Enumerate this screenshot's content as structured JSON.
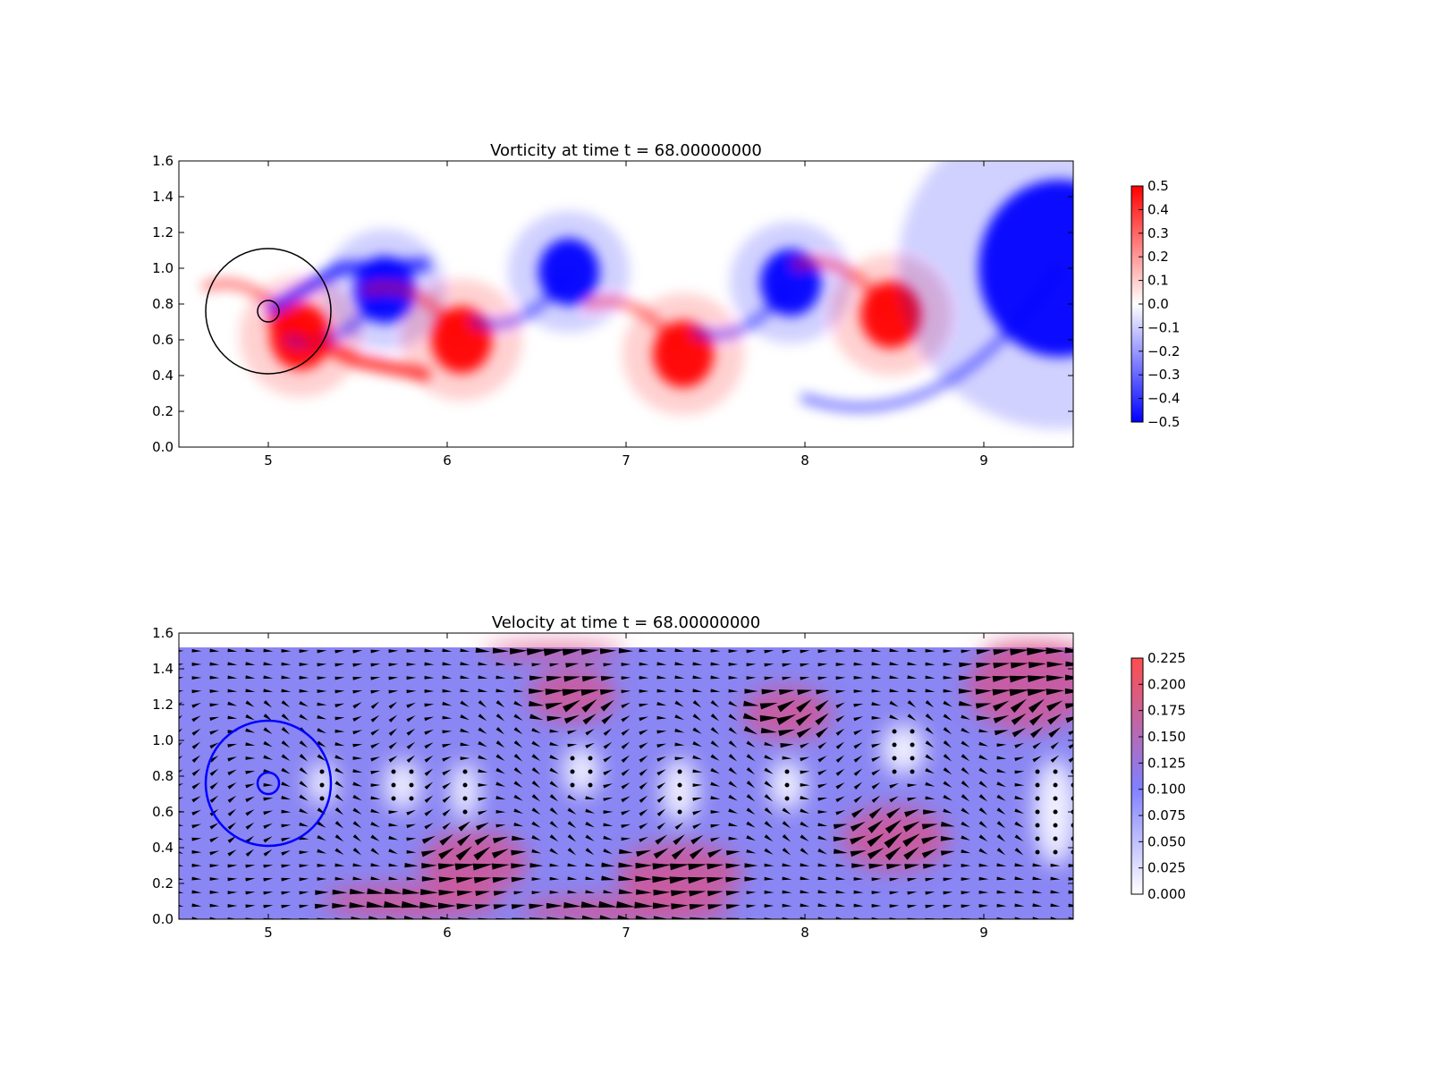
{
  "figure": {
    "background": "#ffffff"
  },
  "chart_data": [
    {
      "type": "heatmap",
      "title": "Vorticity at time t =    68.00000000",
      "xlabel": "",
      "ylabel": "",
      "xlim": [
        4.5,
        9.5
      ],
      "ylim": [
        0.0,
        1.6
      ],
      "x_ticks": [
        "5",
        "6",
        "7",
        "8",
        "9"
      ],
      "y_ticks": [
        "0.0",
        "0.2",
        "0.4",
        "0.6",
        "0.8",
        "1.0",
        "1.2",
        "1.4",
        "1.6"
      ],
      "colormap": "bwr",
      "colorbar": {
        "range": [
          -0.5,
          0.5
        ],
        "ticks": [
          "0.5",
          "0.4",
          "0.3",
          "0.2",
          "0.1",
          "0.0",
          "−0.1",
          "−0.2",
          "−0.3",
          "−0.4",
          "−0.5"
        ],
        "colors": [
          "#0000ff",
          "#ffffff",
          "#ff0000"
        ]
      },
      "cylinder": {
        "center": [
          5.0,
          0.76
        ],
        "radius": 0.05
      },
      "outer_circle": {
        "center": [
          5.0,
          0.76
        ],
        "radius": 0.35
      },
      "vortices": [
        {
          "x": 5.18,
          "y": 0.62,
          "strength": 0.5
        },
        {
          "x": 5.65,
          "y": 0.88,
          "strength": -0.5
        },
        {
          "x": 6.08,
          "y": 0.6,
          "strength": 0.5
        },
        {
          "x": 6.68,
          "y": 0.98,
          "strength": -0.5
        },
        {
          "x": 7.32,
          "y": 0.52,
          "strength": 0.5
        },
        {
          "x": 7.92,
          "y": 0.92,
          "strength": -0.5
        },
        {
          "x": 8.48,
          "y": 0.74,
          "strength": 0.5
        },
        {
          "x": 9.42,
          "y": 1.0,
          "strength": -0.5
        }
      ]
    },
    {
      "type": "heatmap",
      "title": "Velocity at time t =    68.00000000",
      "xlabel": "",
      "ylabel": "",
      "xlim": [
        4.5,
        9.5
      ],
      "ylim": [
        0.0,
        1.6
      ],
      "x_ticks": [
        "5",
        "6",
        "7",
        "8",
        "9"
      ],
      "y_ticks": [
        "0.0",
        "0.2",
        "0.4",
        "0.6",
        "0.8",
        "1.0",
        "1.2",
        "1.4",
        "1.6"
      ],
      "colorbar": {
        "range": [
          0.0,
          0.225
        ],
        "ticks": [
          "0.225",
          "0.200",
          "0.175",
          "0.150",
          "0.125",
          "0.100",
          "0.075",
          "0.050",
          "0.025",
          "0.000"
        ],
        "colors": [
          "#ffffff",
          "#8080ff",
          "#ff4d4d"
        ]
      },
      "field_top": 1.52,
      "quiver": true,
      "cylinder": {
        "center": [
          5.0,
          0.76
        ],
        "radius": 0.05,
        "color": "#0000ff"
      },
      "outer_circle": {
        "center": [
          5.0,
          0.76
        ],
        "radius": 0.35,
        "color": "#0000ff"
      }
    }
  ]
}
